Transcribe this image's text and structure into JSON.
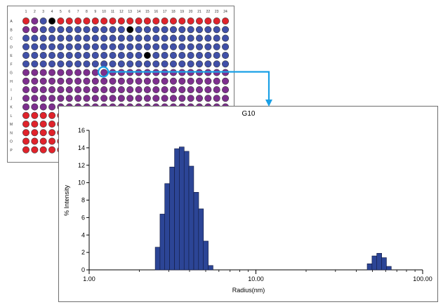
{
  "plate": {
    "columns": [
      "1",
      "2",
      "3",
      "4",
      "5",
      "6",
      "7",
      "8",
      "9",
      "10",
      "11",
      "12",
      "13",
      "14",
      "15",
      "16",
      "17",
      "18",
      "19",
      "20",
      "21",
      "22",
      "23",
      "24"
    ],
    "rows": [
      "A",
      "B",
      "C",
      "D",
      "E",
      "F",
      "G",
      "H",
      "I",
      "J",
      "K",
      "L",
      "M",
      "N",
      "O",
      "P"
    ],
    "selected_well": "G10",
    "colors": {
      "red": "#e0232b",
      "purple": "#7d2f8e",
      "blue": "#4050a8",
      "black": "#000000",
      "selection": "#1aa0e6"
    },
    "row_colors": {
      "A": "blue",
      "B": "blue",
      "C": "blue",
      "D": "blue",
      "E": "blue",
      "F": "blue",
      "G": "purple",
      "H": "purple",
      "I": "purple",
      "J": "purple",
      "K": "purple",
      "L": "red",
      "M": "red",
      "N": "red",
      "O": "red",
      "P": "red"
    },
    "well_overrides": {
      "A1": "red",
      "A2": "purple",
      "A3": "blue",
      "A4": "black",
      "A5": "red",
      "A6": "red",
      "A7": "red",
      "A8": "red",
      "A9": "red",
      "A10": "red",
      "A11": "red",
      "A12": "red",
      "A13": "red",
      "A14": "red",
      "A15": "red",
      "A16": "red",
      "A17": "red",
      "A18": "red",
      "A19": "red",
      "A20": "red",
      "A21": "red",
      "A22": "red",
      "A23": "red",
      "A24": "red",
      "B1": "purple",
      "B2": "purple",
      "B13": "black",
      "E15": "black",
      "G1": "purple",
      "H3": "purple",
      "I2": "purple"
    }
  },
  "chart_data": {
    "type": "bar",
    "title": "G10",
    "xlabel": "Radius(nm)",
    "ylabel": "% Intensity",
    "x_scale": "log",
    "xlim": [
      1,
      100
    ],
    "ylim": [
      0,
      16
    ],
    "x_ticks": [
      "1.00",
      "10.00",
      "100.00"
    ],
    "y_ticks": [
      "0",
      "2",
      "4",
      "6",
      "8",
      "10",
      "12",
      "14",
      "16"
    ],
    "bar_color": "#2c4596",
    "bars": [
      {
        "x": 2.49,
        "y": 2.6
      },
      {
        "x": 2.66,
        "y": 6.4
      },
      {
        "x": 2.84,
        "y": 9.9
      },
      {
        "x": 3.04,
        "y": 11.8
      },
      {
        "x": 3.25,
        "y": 13.9
      },
      {
        "x": 3.47,
        "y": 14.1
      },
      {
        "x": 3.71,
        "y": 13.6
      },
      {
        "x": 3.96,
        "y": 11.9
      },
      {
        "x": 4.24,
        "y": 8.9
      },
      {
        "x": 4.53,
        "y": 7.0
      },
      {
        "x": 4.84,
        "y": 3.3
      },
      {
        "x": 5.17,
        "y": 0.5
      },
      {
        "x": 46.5,
        "y": 0.7
      },
      {
        "x": 49.7,
        "y": 1.6
      },
      {
        "x": 53.1,
        "y": 1.9
      },
      {
        "x": 56.7,
        "y": 1.4
      },
      {
        "x": 60.6,
        "y": 0.4
      }
    ]
  }
}
